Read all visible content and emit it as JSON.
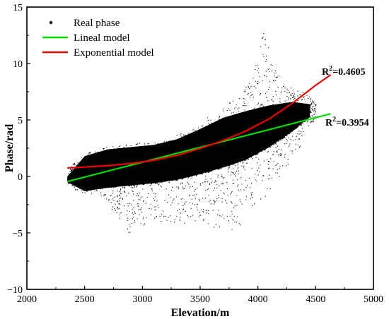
{
  "chart_data": {
    "type": "scatter",
    "title": "",
    "xlabel": "Elevation/m",
    "ylabel": "Phase/rad",
    "xlim": [
      2000,
      5000
    ],
    "ylim": [
      -10,
      15
    ],
    "grid": false,
    "legend_placement": "top-left",
    "x_ticks": [
      2000,
      2500,
      3000,
      3500,
      4000,
      4500,
      5000
    ],
    "y_ticks": [
      -10,
      -5,
      0,
      5,
      10,
      15
    ],
    "x_tick_labels": [
      "2000",
      "2500",
      "3000",
      "3500",
      "4000",
      "4500",
      "5000"
    ],
    "y_tick_labels": [
      "−10",
      "−5",
      "0",
      "5",
      "10",
      "15"
    ],
    "series": [
      {
        "name": "Real phase",
        "kind": "scatter",
        "color": "#000000",
        "envelope": {
          "x": [
            2350,
            2400,
            2500,
            2600,
            2700,
            2800,
            2900,
            3000,
            3100,
            3200,
            3300,
            3400,
            3500,
            3600,
            3700,
            3800,
            3900,
            4000,
            4050,
            4100,
            4200,
            4300,
            4400,
            4450,
            4500
          ],
          "upper": [
            0.2,
            1.2,
            2.0,
            2.4,
            2.7,
            2.8,
            2.9,
            3.0,
            3.2,
            3.4,
            3.8,
            4.3,
            4.9,
            5.5,
            6.2,
            7.0,
            8.0,
            10.5,
            13.3,
            11.0,
            8.5,
            7.8,
            7.5,
            7.0,
            6.5
          ],
          "lower": [
            -0.6,
            -1.2,
            -1.6,
            -1.8,
            -2.5,
            -3.8,
            -5.5,
            -4.5,
            -4.0,
            -4.2,
            -4.0,
            -4.2,
            -4.0,
            -4.5,
            -4.5,
            -5.0,
            -3.5,
            -2.5,
            -2.0,
            -1.5,
            -0.5,
            2.0,
            3.0,
            4.5,
            5.0
          ]
        },
        "dense_band": {
          "x": [
            2350,
            2500,
            2700,
            2900,
            3100,
            3300,
            3500,
            3700,
            3900,
            4100,
            4300,
            4450
          ],
          "upper": [
            0.0,
            1.8,
            2.4,
            2.6,
            2.8,
            3.3,
            4.2,
            5.2,
            5.8,
            6.3,
            6.6,
            6.4
          ],
          "lower": [
            -0.5,
            -1.3,
            -1.0,
            -0.8,
            -0.6,
            -0.3,
            0.2,
            0.8,
            1.5,
            2.6,
            4.0,
            5.3
          ]
        }
      },
      {
        "name": "Lineal model",
        "kind": "line",
        "color": "#00dd00",
        "x": [
          2350,
          4630
        ],
        "y": [
          -0.45,
          5.55
        ],
        "annotation": {
          "base": "R",
          "sup": "2",
          "text": "=0.3954"
        }
      },
      {
        "name": "Exponential model",
        "kind": "line",
        "color": "#ee0000",
        "x": [
          2350,
          2500,
          2700,
          2900,
          3100,
          3300,
          3500,
          3700,
          3900,
          4100,
          4300,
          4500,
          4630
        ],
        "y": [
          0.75,
          0.83,
          0.96,
          1.15,
          1.44,
          1.87,
          2.48,
          3.19,
          4.04,
          5.12,
          6.5,
          8.07,
          9.0
        ],
        "annotation": {
          "base": "R",
          "sup": "2",
          "text": "=0.4605"
        }
      }
    ]
  }
}
